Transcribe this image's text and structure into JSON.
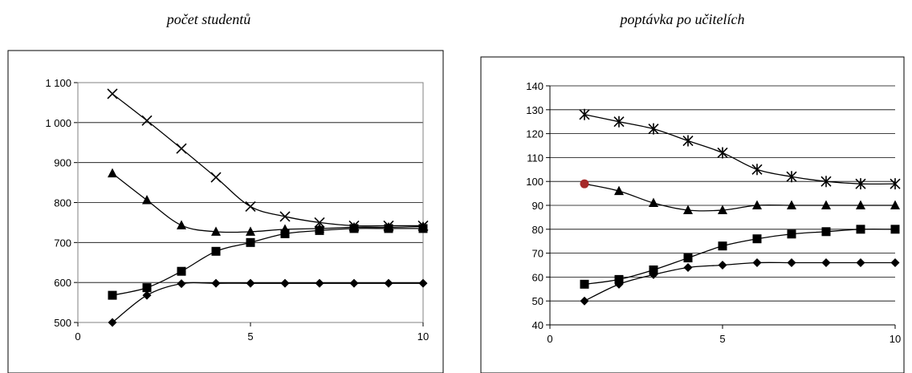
{
  "chart_data": [
    {
      "type": "line",
      "title": "počet studentů",
      "xlabel": "",
      "ylabel": "",
      "xlim": [
        0,
        10
      ],
      "ylim": [
        500,
        1100
      ],
      "x_ticks": [
        "0",
        "5",
        "10"
      ],
      "y_ticks": [
        "500",
        "600",
        "700",
        "800",
        "900",
        "1 000",
        "1 100"
      ],
      "grid": "horizontal",
      "x": [
        1,
        2,
        3,
        4,
        5,
        6,
        7,
        8,
        9,
        10
      ],
      "series": [
        {
          "marker": "x",
          "values": [
            1072,
            1005,
            935,
            863,
            790,
            765,
            750,
            742,
            742,
            742
          ]
        },
        {
          "marker": "triangle",
          "values": [
            873,
            806,
            743,
            727,
            727,
            733,
            735,
            738,
            738,
            740
          ]
        },
        {
          "marker": "square",
          "values": [
            568,
            587,
            628,
            678,
            700,
            722,
            730,
            735,
            735,
            735
          ]
        },
        {
          "marker": "diamond",
          "values": [
            500,
            568,
            597,
            598,
            598,
            598,
            598,
            598,
            598,
            598
          ]
        }
      ]
    },
    {
      "type": "line",
      "title": "poptávka po učitelích",
      "xlabel": "",
      "ylabel": "",
      "xlim": [
        0,
        10
      ],
      "ylim": [
        40,
        140
      ],
      "x_ticks": [
        "0",
        "5",
        "10"
      ],
      "y_ticks": [
        "40",
        "50",
        "60",
        "70",
        "80",
        "90",
        "100",
        "110",
        "120",
        "130",
        "140"
      ],
      "grid": "horizontal",
      "x": [
        1,
        2,
        3,
        4,
        5,
        6,
        7,
        8,
        9,
        10
      ],
      "series": [
        {
          "marker": "star",
          "values": [
            128,
            125,
            122,
            117,
            112,
            105,
            102,
            100,
            99,
            99
          ]
        },
        {
          "marker": "triangle",
          "values": [
            99,
            96,
            91,
            88,
            88,
            90,
            90,
            90,
            90,
            90
          ],
          "first_point_color": "#a52a2a"
        },
        {
          "marker": "square",
          "values": [
            57,
            59,
            63,
            68,
            73,
            76,
            78,
            79,
            80,
            80
          ]
        },
        {
          "marker": "diamond",
          "values": [
            50,
            57,
            61,
            64,
            65,
            66,
            66,
            66,
            66,
            66
          ]
        }
      ]
    }
  ]
}
